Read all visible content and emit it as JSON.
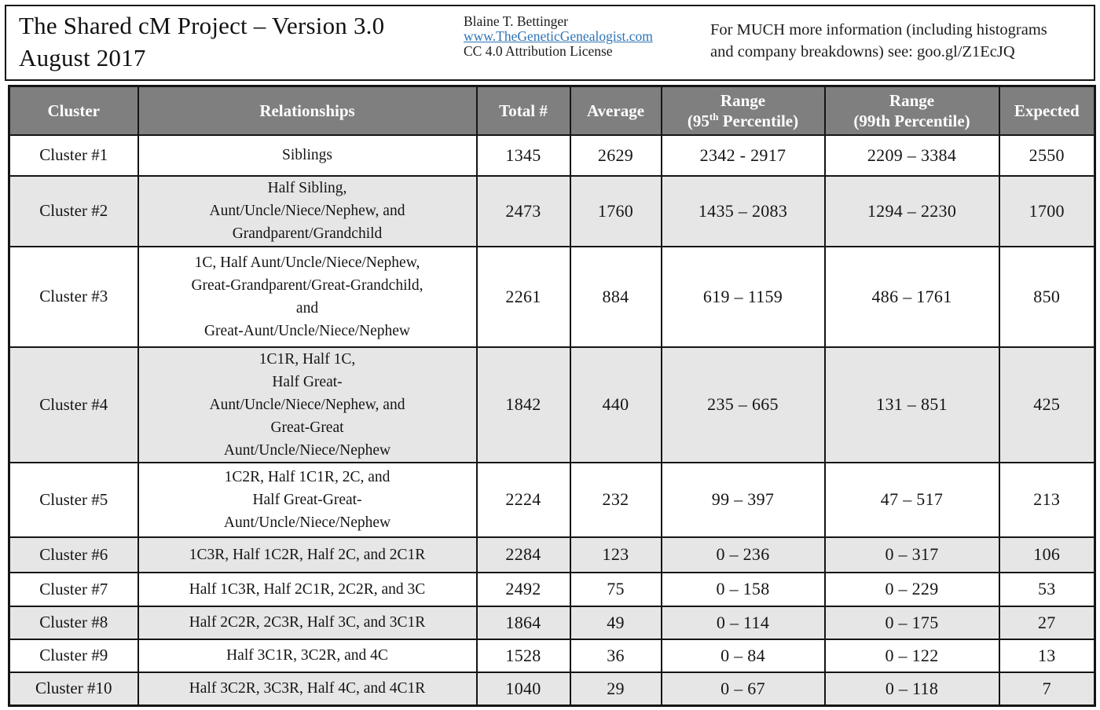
{
  "page": {
    "background": "#ffffff",
    "border_color": "#151515",
    "table_header_bg": "#7f7f7f",
    "table_header_text_color": "#ffffff",
    "shaded_row_bg": "#e6e6e6",
    "link_color": "#2e74b5"
  },
  "title_block": {
    "title": "The Shared cM Project – Version 3.0\nAugust 2017",
    "author": "Blaine T. Bettinger",
    "website": "www.TheGeneticGenealogist.com",
    "license": "CC 4.0 Attribution License",
    "info": "For MUCH more information (including histograms\nand company breakdowns) see: goo.gl/Z1EcJQ"
  },
  "table": {
    "header": {
      "cluster": "Cluster",
      "relationships": "Relationships",
      "total": "Total #",
      "average": "Average",
      "range95": {
        "line1": "Range",
        "line2_pre": "(95",
        "line2_sup": "th",
        "line2_post": " Percentile)"
      },
      "range99": {
        "line1": "Range",
        "line2": "(99th Percentile)"
      },
      "expected": "Expected"
    },
    "rows": [
      {
        "cluster": "Cluster #1",
        "relationships": "Siblings",
        "total": "1345",
        "average": "2629",
        "range95": "2342 - 2917",
        "range99": "2209 – 3384",
        "expected": "2550"
      },
      {
        "cluster": "Cluster #2",
        "relationships": "Half Sibling,\nAunt/Uncle/Niece/Nephew, and\nGrandparent/Grandchild",
        "total": "2473",
        "average": "1760",
        "range95": "1435 – 2083",
        "range99": "1294 – 2230",
        "expected": "1700"
      },
      {
        "cluster": "Cluster #3",
        "relationships": "1C, Half Aunt/Uncle/Niece/Nephew,\nGreat-Grandparent/Great-Grandchild,\nand\nGreat-Aunt/Uncle/Niece/Nephew",
        "total": "2261",
        "average": "884",
        "range95": "619 – 1159",
        "range99": "486 – 1761",
        "expected": "850"
      },
      {
        "cluster": "Cluster #4",
        "relationships": "1C1R, Half 1C,\nHalf Great-\nAunt/Uncle/Niece/Nephew, and\nGreat-Great\nAunt/Uncle/Niece/Nephew",
        "total": "1842",
        "average": "440",
        "range95": "235 – 665",
        "range99": "131 – 851",
        "expected": "425"
      },
      {
        "cluster": "Cluster #5",
        "relationships": "1C2R, Half 1C1R, 2C, and\nHalf Great-Great-\nAunt/Uncle/Niece/Nephew",
        "total": "2224",
        "average": "232",
        "range95": "99 – 397",
        "range99": "47 – 517",
        "expected": "213"
      },
      {
        "cluster": "Cluster #6",
        "relationships": "1C3R, Half 1C2R, Half 2C, and 2C1R",
        "total": "2284",
        "average": "123",
        "range95": "0 – 236",
        "range99": "0 – 317",
        "expected": "106"
      },
      {
        "cluster": "Cluster #7",
        "relationships": "Half 1C3R, Half 2C1R, 2C2R, and 3C",
        "total": "2492",
        "average": "75",
        "range95": "0 – 158",
        "range99": "0 – 229",
        "expected": "53"
      },
      {
        "cluster": "Cluster #8",
        "relationships": "Half 2C2R, 2C3R, Half 3C, and 3C1R",
        "total": "1864",
        "average": "49",
        "range95": "0 – 114",
        "range99": "0 – 175",
        "expected": "27"
      },
      {
        "cluster": "Cluster #9",
        "relationships": "Half 3C1R, 3C2R, and 4C",
        "total": "1528",
        "average": "36",
        "range95": "0 – 84",
        "range99": "0 – 122",
        "expected": "13"
      },
      {
        "cluster": "Cluster #10",
        "relationships": "Half 3C2R, 3C3R, Half 4C, and 4C1R",
        "total": "1040",
        "average": "29",
        "range95": "0 – 67",
        "range99": "0 – 118",
        "expected": "7"
      }
    ]
  },
  "chart_data": {
    "type": "table",
    "title": "The Shared cM Project – Version 3.0 August 2017",
    "columns": [
      "Cluster",
      "Relationships",
      "Total #",
      "Average",
      "Range (95th Percentile)",
      "Range (99th Percentile)",
      "Expected"
    ],
    "totals": [
      1345,
      2473,
      2261,
      1842,
      2224,
      2284,
      2492,
      1864,
      1528,
      1040
    ],
    "averages": [
      2629,
      1760,
      884,
      440,
      232,
      123,
      75,
      49,
      36,
      29
    ],
    "range_95_low": [
      2342,
      1435,
      619,
      235,
      99,
      0,
      0,
      0,
      0,
      0
    ],
    "range_95_high": [
      2917,
      2083,
      1159,
      665,
      397,
      236,
      158,
      114,
      84,
      67
    ],
    "range_99_low": [
      2209,
      1294,
      486,
      131,
      47,
      0,
      0,
      0,
      0,
      0
    ],
    "range_99_high": [
      3384,
      2230,
      1761,
      851,
      517,
      317,
      229,
      175,
      122,
      118
    ],
    "expected": [
      2550,
      1700,
      850,
      425,
      213,
      106,
      53,
      27,
      13,
      7
    ]
  }
}
